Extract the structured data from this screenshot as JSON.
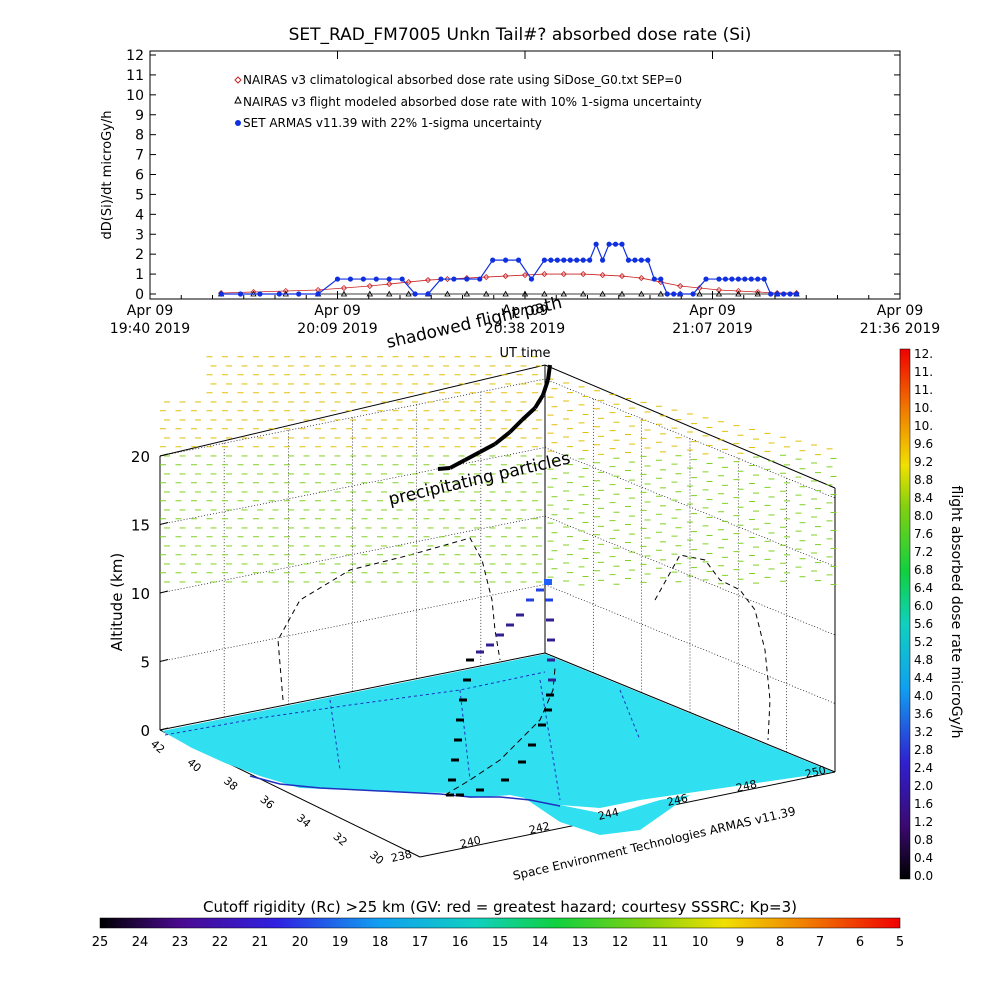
{
  "chart_data": [
    {
      "type": "line",
      "title": "SET_RAD_FM7005  Unkn Tail#? absorbed dose rate (Si)",
      "xlabel": "UT time",
      "ylabel": "dD(Si)/dt microGy/h",
      "ylim": [
        0,
        12
      ],
      "y_ticks": [
        "0",
        "1",
        "2",
        "3",
        "4",
        "5",
        "6",
        "7",
        "8",
        "9",
        "10",
        "11",
        "12"
      ],
      "x_ticks": [
        {
          "date": "Apr 09",
          "time": "19:40 2019"
        },
        {
          "date": "Apr 09",
          "time": "20:09 2019"
        },
        {
          "date": "Apr 09",
          "time": "20:38 2019"
        },
        {
          "date": "Apr 09",
          "time": "21:07 2019"
        },
        {
          "date": "Apr 09",
          "time": "21:36 2019"
        }
      ],
      "xlim_minutes_after_1940": [
        0,
        116
      ],
      "legend_placement": "top-left",
      "series": [
        {
          "name": "NAIRAS v3 climatological absorbed dose rate using SiDose_G0.txt SEP=0",
          "marker": "diamond",
          "color": "#cc2222",
          "x_minutes": [
            11,
            16,
            21,
            26,
            30,
            34,
            37,
            40,
            43,
            46,
            49,
            52,
            55,
            58,
            61,
            64,
            67,
            70,
            73,
            76,
            79,
            82,
            85,
            88,
            91,
            94,
            97,
            100
          ],
          "values": [
            0.05,
            0.1,
            0.15,
            0.2,
            0.3,
            0.4,
            0.5,
            0.6,
            0.7,
            0.75,
            0.8,
            0.85,
            0.9,
            0.95,
            1.0,
            1.0,
            1.0,
            0.95,
            0.9,
            0.8,
            0.6,
            0.4,
            0.3,
            0.2,
            0.15,
            0.1,
            0.05,
            0.05
          ]
        },
        {
          "name": "NAIRAS v3 flight modeled absorbed dose rate with 10% 1-sigma uncertainty",
          "marker": "triangle",
          "color": "#000000",
          "x_minutes": [
            11,
            16,
            21,
            26,
            30,
            34,
            37,
            40,
            43,
            46,
            49,
            52,
            55,
            58,
            61,
            64,
            67,
            70,
            73,
            76,
            79,
            82,
            85,
            88,
            91,
            94,
            97,
            100
          ],
          "values": [
            0,
            0,
            0,
            0,
            0,
            0,
            0,
            0,
            0,
            0,
            0,
            0,
            0,
            0,
            0,
            0,
            0,
            0,
            0,
            0,
            0,
            0,
            0,
            0,
            0,
            0,
            0,
            0
          ]
        },
        {
          "name": "SET ARMAS v11.39 with 22% 1-sigma uncertainty",
          "marker": "circle",
          "color": "#1030e0",
          "x_minutes": [
            11,
            14,
            17,
            20,
            23,
            26,
            29,
            31,
            33,
            35,
            37,
            39,
            41,
            43,
            45,
            47,
            49,
            51,
            53,
            55,
            57,
            59,
            61,
            62,
            63,
            64,
            65,
            66,
            67,
            68,
            69,
            70,
            71,
            72,
            73,
            74,
            75,
            76,
            77,
            78,
            79,
            80,
            81,
            82,
            84,
            86,
            88,
            89,
            90,
            91,
            92,
            93,
            94,
            95,
            96,
            97,
            98,
            99,
            100
          ],
          "values": [
            0,
            0,
            0,
            0,
            0,
            0,
            0.75,
            0.75,
            0.75,
            0.75,
            0.75,
            0.75,
            0,
            0,
            0.75,
            0.75,
            0.75,
            0.75,
            1.7,
            1.7,
            1.7,
            0.75,
            1.7,
            1.7,
            1.7,
            1.7,
            1.7,
            1.7,
            1.7,
            1.7,
            2.5,
            1.7,
            2.5,
            2.5,
            2.5,
            1.7,
            1.7,
            1.7,
            1.7,
            0.75,
            0.75,
            0,
            0,
            0,
            0,
            0.75,
            0.75,
            0.75,
            0.75,
            0.75,
            0.75,
            0.75,
            0.75,
            0.75,
            0,
            0,
            0,
            0,
            0
          ]
        }
      ]
    },
    {
      "type": "scatter",
      "title": "",
      "zlabel": "Altitude (km)",
      "z_ticks": [
        "0",
        "5",
        "10",
        "15",
        "20"
      ],
      "lat_ticks": [
        "30",
        "32",
        "34",
        "36",
        "38",
        "40",
        "42"
      ],
      "lon_ticks": [
        "238",
        "240",
        "242",
        "244",
        "246",
        "248",
        "250"
      ],
      "annotations": {
        "shadow": "shadowed flight path",
        "particles": "precipitating particles",
        "credit": "Space Environment Technologies ARMAS v11.39"
      },
      "colorbar": {
        "label": "flight absorbed dose rate microGy/h",
        "range": [
          0,
          12
        ],
        "tick_labels": [
          "12.",
          "11.",
          "11.",
          "10.",
          "10.",
          "9.6",
          "9.2",
          "8.8",
          "8.4",
          "8.0",
          "7.6",
          "7.2",
          "6.8",
          "6.4",
          "6.0",
          "5.6",
          "5.2",
          "4.8",
          "4.4",
          "4.0",
          "3.6",
          "3.2",
          "2.8",
          "2.4",
          "2.0",
          "1.6",
          "1.2",
          "0.8",
          "0.4",
          "0.0"
        ]
      },
      "rigidity_bar": {
        "title": "Cutoff rigidity (Rc) >25 km (GV: red = greatest hazard; courtesy SSSRC; Kp=3)",
        "tick_labels": [
          "25",
          "24",
          "23",
          "22",
          "21",
          "20",
          "19",
          "18",
          "17",
          "16",
          "15",
          "14",
          "13",
          "12",
          "11",
          "10",
          "9",
          "8",
          "7",
          "6",
          "5"
        ]
      },
      "colors": {
        "ground": "#30e0f0",
        "particle_yellow": "#e0c000",
        "particle_green": "#80d020",
        "flight_path": "#000000"
      }
    }
  ]
}
